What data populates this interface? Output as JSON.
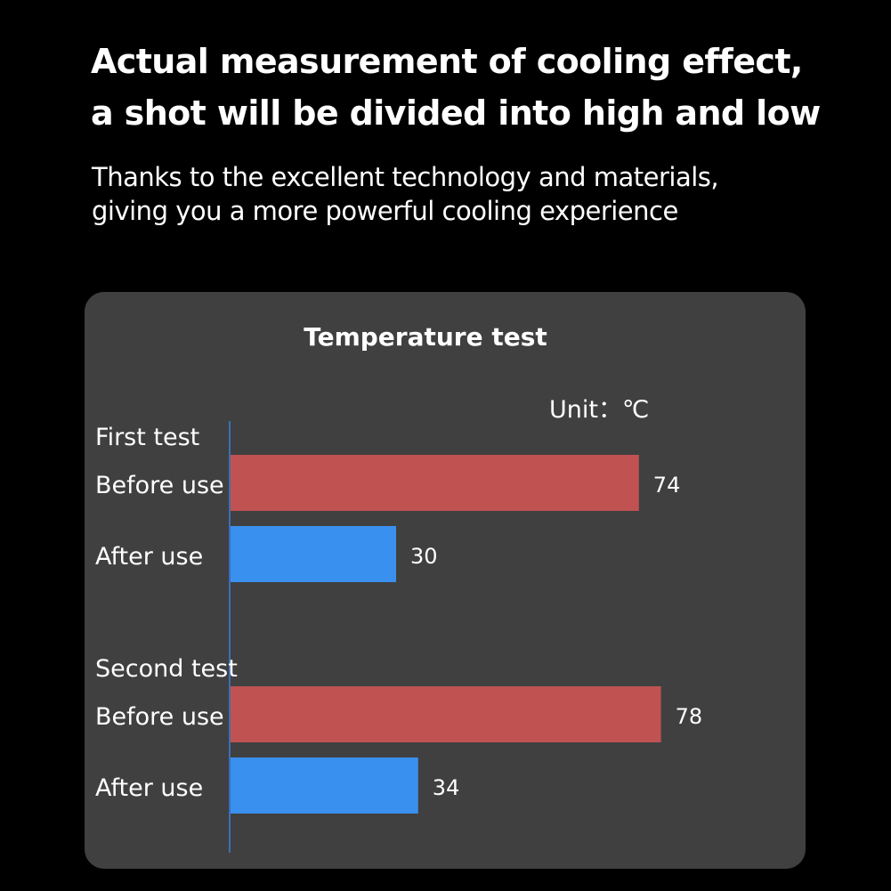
{
  "headline": {
    "line1": "Actual measurement of cooling effect,",
    "line2": "a shot will be divided into high and low"
  },
  "subline": {
    "line1": "Thanks to the excellent technology and materials,",
    "line2": "giving you a more powerful cooling experience"
  },
  "colors": {
    "background": "#000000",
    "panel": "#404040",
    "before_bar": "#c05252",
    "after_bar": "#3a90ee",
    "axis_line": "#3a6fb8"
  },
  "chart_data": {
    "type": "bar",
    "orientation": "horizontal",
    "title": "Temperature test",
    "unit_label": "Unit：℃",
    "groups": [
      {
        "name": "First test",
        "bars": [
          {
            "label": "Before use",
            "value": 74,
            "color": "#c05252"
          },
          {
            "label": "After use",
            "value": 30,
            "color": "#3a90ee"
          }
        ]
      },
      {
        "name": "Second test",
        "bars": [
          {
            "label": "Before use",
            "value": 78,
            "color": "#c05252"
          },
          {
            "label": "After use",
            "value": 34,
            "color": "#3a90ee"
          }
        ]
      }
    ],
    "xlim": [
      0,
      78
    ],
    "grid": false
  }
}
